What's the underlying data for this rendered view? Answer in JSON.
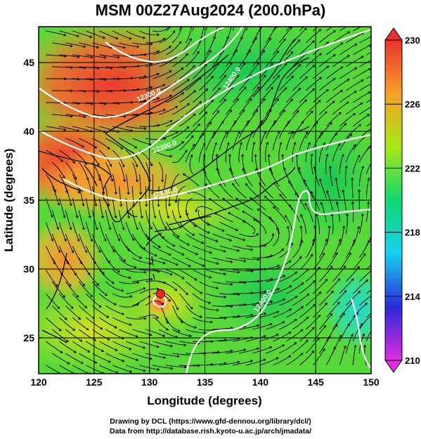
{
  "title": "MSM 00Z27Aug2024 (200.0hPa)",
  "footer": {
    "line1": "Drawing by DCL (https://www.gfd-dennou.org/library/dcl/)",
    "line2": "Data from http://database.rish.kyoto-u.ac.jp/arch/jmadata/"
  },
  "axes": {
    "xlabel": "Longitude (degrees)",
    "ylabel": "Latitude  (degrees)",
    "xlim": [
      120,
      150
    ],
    "ylim": [
      22.4,
      47.6
    ],
    "xticks": [
      "120",
      "125",
      "130",
      "135",
      "140",
      "145",
      "150"
    ],
    "yticks": [
      "25",
      "30",
      "35",
      "40",
      "45"
    ]
  },
  "colorbar": {
    "min": 210,
    "max": 230,
    "ticks": [
      "210",
      "214",
      "218",
      "222",
      "226",
      "230"
    ],
    "colors": [
      "#e02de0",
      "#2a2ad8",
      "#18d0f0",
      "#10d870",
      "#a8e818",
      "#f8a028",
      "#e83030"
    ]
  },
  "contours": {
    "color": "#ffffff",
    "labels": [
      "12300.0",
      "12300.0",
      "12400.0",
      "12500.0",
      "12400.0"
    ]
  },
  "features": {
    "typhoon_center": {
      "lon": 131,
      "lat": 28.2
    }
  }
}
